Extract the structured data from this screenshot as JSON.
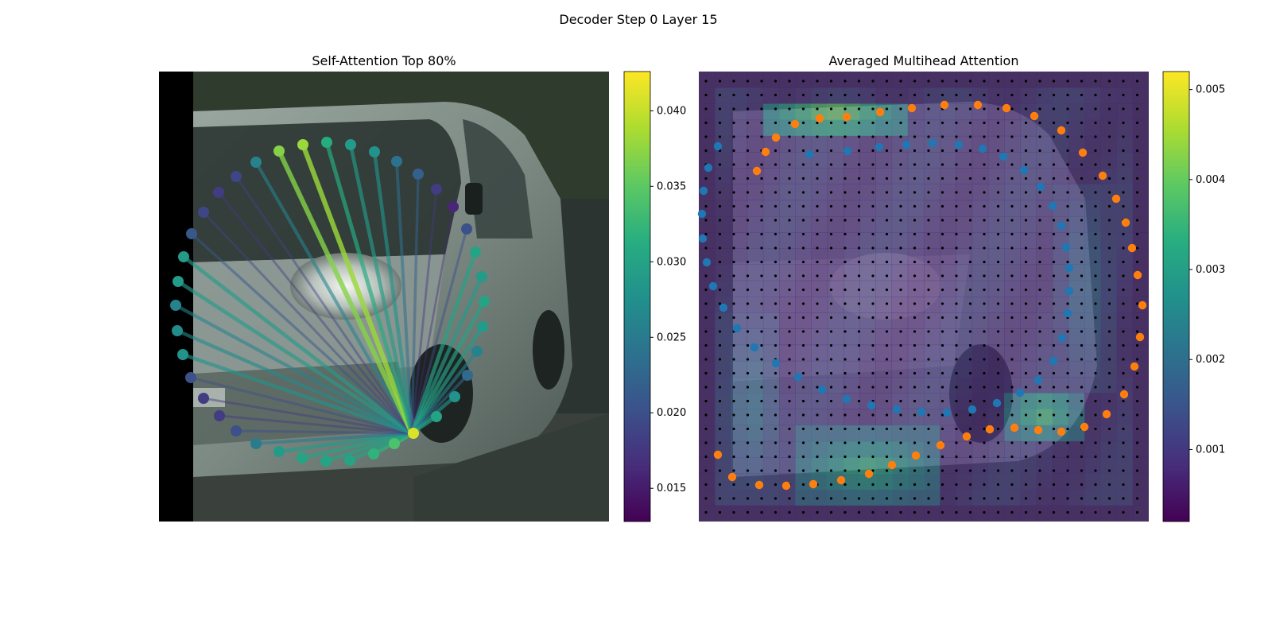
{
  "figure": {
    "suptitle": "Decoder Step 0 Layer 15"
  },
  "chart_data": [
    {
      "type": "scatter",
      "title": "Self-Attention Top 80%",
      "description_kind": "image-with-attention-lines",
      "colormap": "viridis",
      "colorbar": {
        "min": 0.0128,
        "max": 0.0426,
        "ticks": [
          0.015,
          0.02,
          0.025,
          0.03,
          0.035,
          0.04
        ],
        "tick_labels": [
          "0.015",
          "0.020",
          "0.025",
          "0.030",
          "0.035",
          "0.040"
        ]
      },
      "query_point": [
        518,
        545
      ],
      "points": [
        [
          520,
          545,
          0.041
        ],
        [
          496,
          558,
          0.034
        ],
        [
          470,
          571,
          0.032
        ],
        [
          440,
          579,
          0.03
        ],
        [
          410,
          580,
          0.03
        ],
        [
          380,
          576,
          0.03
        ],
        [
          351,
          568,
          0.029
        ],
        [
          322,
          558,
          0.025
        ],
        [
          297,
          542,
          0.02
        ],
        [
          276,
          523,
          0.018
        ],
        [
          256,
          501,
          0.018
        ],
        [
          240,
          475,
          0.02
        ],
        [
          230,
          446,
          0.028
        ],
        [
          223,
          416,
          0.027
        ],
        [
          221,
          384,
          0.026
        ],
        [
          224,
          354,
          0.029
        ],
        [
          231,
          323,
          0.029
        ],
        [
          241,
          294,
          0.021
        ],
        [
          256,
          267,
          0.019
        ],
        [
          275,
          242,
          0.018
        ],
        [
          297,
          222,
          0.019
        ],
        [
          322,
          204,
          0.026
        ],
        [
          351,
          190,
          0.037
        ],
        [
          381,
          182,
          0.038
        ],
        [
          411,
          179,
          0.031
        ],
        [
          441,
          182,
          0.029
        ],
        [
          471,
          191,
          0.028
        ],
        [
          499,
          203,
          0.024
        ],
        [
          526,
          219,
          0.022
        ],
        [
          549,
          238,
          0.018
        ],
        [
          570,
          260,
          0.016
        ],
        [
          587,
          288,
          0.02
        ],
        [
          598,
          317,
          0.03
        ],
        [
          606,
          348,
          0.029
        ],
        [
          609,
          379,
          0.03
        ],
        [
          607,
          411,
          0.029
        ],
        [
          600,
          442,
          0.026
        ],
        [
          588,
          472,
          0.023
        ],
        [
          572,
          499,
          0.028
        ],
        [
          549,
          524,
          0.03
        ]
      ]
    },
    {
      "type": "heatmap",
      "title": "Averaged Multihead Attention",
      "colormap": "viridis",
      "colorbar": {
        "min": 0.0002,
        "max": 0.0052,
        "ticks": [
          0.001,
          0.002,
          0.003,
          0.004,
          0.005
        ],
        "tick_labels": [
          "0.001",
          "0.002",
          "0.003",
          "0.004",
          "0.005"
        ]
      },
      "hot_regions": [
        [
          0.15,
          0.06,
          0.45,
          0.14,
          0.0045
        ],
        [
          0.2,
          0.8,
          0.55,
          0.96,
          0.0035
        ],
        [
          0.68,
          0.7,
          0.85,
          0.82,
          0.0038
        ],
        [
          0.05,
          0.55,
          0.18,
          0.95,
          0.0022
        ],
        [
          0.8,
          0.25,
          0.92,
          0.72,
          0.002
        ]
      ],
      "blue_points": [
        [
          918,
          194
        ],
        [
          966,
          190
        ],
        [
          1006,
          185
        ],
        [
          1040,
          182
        ],
        [
          1073,
          180
        ],
        [
          1106,
          182
        ],
        [
          1136,
          187
        ],
        [
          1162,
          197
        ],
        [
          1188,
          214
        ],
        [
          1209,
          235
        ],
        [
          1224,
          259
        ],
        [
          1235,
          284
        ],
        [
          1241,
          311
        ],
        [
          1245,
          337
        ],
        [
          1245,
          366
        ],
        [
          1243,
          394
        ],
        [
          1236,
          425
        ],
        [
          1225,
          454
        ],
        [
          1206,
          478
        ],
        [
          1183,
          494
        ],
        [
          1154,
          507
        ],
        [
          1123,
          515
        ],
        [
          1091,
          519
        ],
        [
          1059,
          518
        ],
        [
          1028,
          515
        ],
        [
          996,
          510
        ],
        [
          965,
          502
        ],
        [
          934,
          490
        ],
        [
          904,
          474
        ],
        [
          876,
          457
        ],
        [
          849,
          437
        ],
        [
          827,
          413
        ],
        [
          810,
          387
        ],
        [
          797,
          360
        ],
        [
          789,
          330
        ],
        [
          784,
          300
        ],
        [
          783,
          269
        ],
        [
          785,
          240
        ],
        [
          791,
          211
        ],
        [
          803,
          184
        ]
      ],
      "orange_points": [
        [
          852,
          215
        ],
        [
          863,
          191
        ],
        [
          876,
          173
        ],
        [
          900,
          156
        ],
        [
          931,
          149
        ],
        [
          965,
          147
        ],
        [
          1007,
          141
        ],
        [
          1047,
          136
        ],
        [
          1088,
          132
        ],
        [
          1130,
          132
        ],
        [
          1166,
          136
        ],
        [
          1201,
          146
        ],
        [
          1235,
          164
        ],
        [
          1262,
          192
        ],
        [
          1287,
          221
        ],
        [
          1304,
          250
        ],
        [
          1316,
          280
        ],
        [
          1324,
          312
        ],
        [
          1331,
          346
        ],
        [
          1337,
          384
        ],
        [
          1334,
          424
        ],
        [
          1327,
          461
        ],
        [
          1314,
          496
        ],
        [
          1292,
          521
        ],
        [
          1264,
          537
        ],
        [
          1235,
          543
        ],
        [
          1206,
          541
        ],
        [
          1176,
          538
        ],
        [
          1145,
          540
        ],
        [
          1116,
          549
        ],
        [
          1083,
          560
        ],
        [
          1052,
          573
        ],
        [
          1022,
          585
        ],
        [
          993,
          596
        ],
        [
          958,
          604
        ],
        [
          923,
          609
        ],
        [
          889,
          611
        ],
        [
          855,
          610
        ],
        [
          821,
          600
        ],
        [
          803,
          572
        ]
      ]
    }
  ]
}
